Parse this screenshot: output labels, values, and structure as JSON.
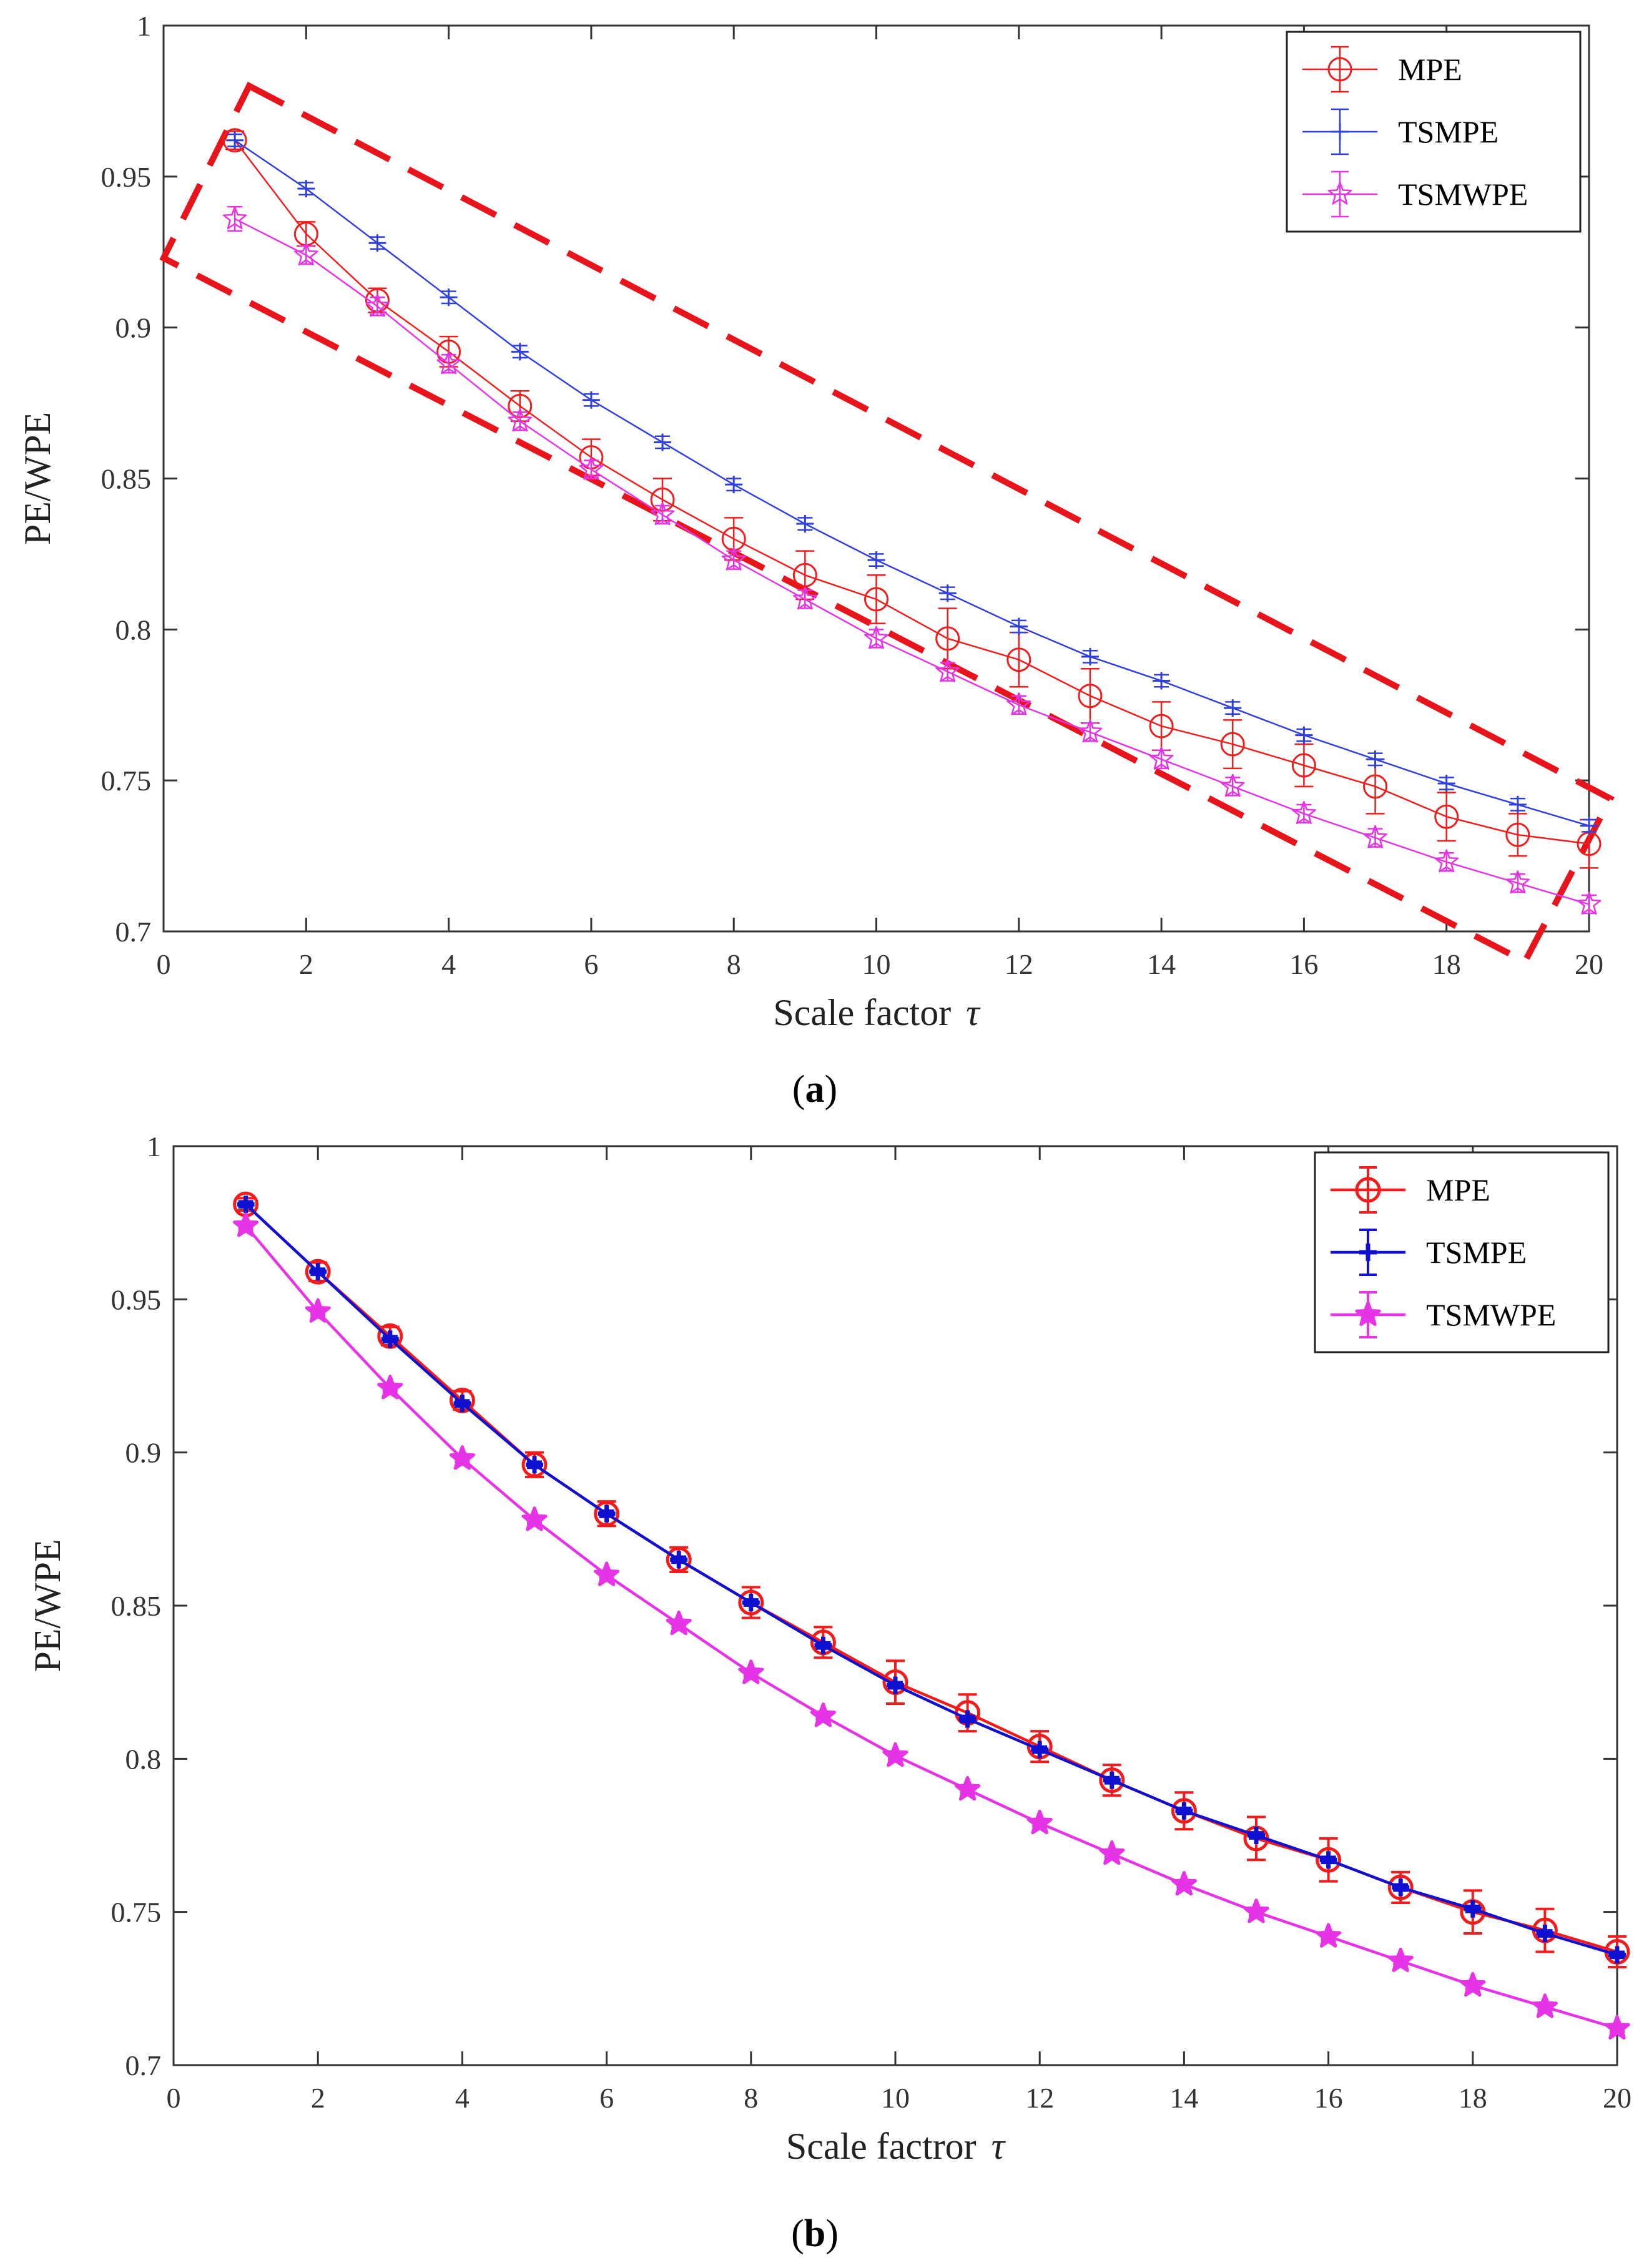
{
  "chart_data": [
    {
      "type": "line",
      "panel": "a",
      "caption_open": "(",
      "caption_letter": "a",
      "caption_close": ")",
      "xlabel": "Scale factor",
      "xlabel_symbol": "τ",
      "ylabel": "PE/WPE",
      "xlim": [
        0,
        20
      ],
      "ylim": [
        0.7,
        1
      ],
      "xticks": [
        "0",
        "2",
        "4",
        "6",
        "8",
        "10",
        "12",
        "14",
        "16",
        "18",
        "20"
      ],
      "yticks": [
        "0.7",
        "0.75",
        "0.8",
        "0.85",
        "0.9",
        "0.95",
        "1"
      ],
      "legend_position": "top-right",
      "highlight_box": {
        "style": "dashed",
        "color": "#e8141b",
        "corners": [
          [
            1.2,
            0.98
          ],
          [
            20.3,
            0.744
          ],
          [
            19.1,
            0.69
          ],
          [
            0,
            0.923
          ]
        ]
      },
      "x": [
        1,
        2,
        3,
        4,
        5,
        6,
        7,
        8,
        9,
        10,
        11,
        12,
        13,
        14,
        15,
        16,
        17,
        18,
        19,
        20
      ],
      "series": [
        {
          "name": "MPE",
          "color": "#f21c1c",
          "marker": "circle",
          "values": [
            0.962,
            0.931,
            0.909,
            0.892,
            0.874,
            0.857,
            0.843,
            0.83,
            0.818,
            0.81,
            0.797,
            0.79,
            0.778,
            0.768,
            0.762,
            0.755,
            0.748,
            0.738,
            0.732,
            0.729
          ],
          "errors": [
            0.003,
            0.004,
            0.004,
            0.005,
            0.005,
            0.006,
            0.007,
            0.007,
            0.008,
            0.008,
            0.01,
            0.009,
            0.009,
            0.008,
            0.008,
            0.007,
            0.009,
            0.008,
            0.007,
            0.008
          ]
        },
        {
          "name": "TSMPE",
          "color": "#2f3fe0",
          "marker": "plus",
          "values": [
            0.962,
            0.946,
            0.928,
            0.91,
            0.892,
            0.876,
            0.862,
            0.848,
            0.835,
            0.823,
            0.812,
            0.801,
            0.791,
            0.783,
            0.774,
            0.765,
            0.757,
            0.749,
            0.742,
            0.735
          ],
          "errors": [
            0.002,
            0.002,
            0.002,
            0.002,
            0.002,
            0.002,
            0.002,
            0.002,
            0.002,
            0.002,
            0.002,
            0.002,
            0.002,
            0.002,
            0.002,
            0.002,
            0.002,
            0.002,
            0.002,
            0.002
          ]
        },
        {
          "name": "TSMWPE",
          "color": "#e633e6",
          "marker": "star",
          "values": [
            0.936,
            0.924,
            0.907,
            0.888,
            0.869,
            0.853,
            0.838,
            0.823,
            0.81,
            0.797,
            0.786,
            0.775,
            0.766,
            0.757,
            0.748,
            0.739,
            0.731,
            0.723,
            0.716,
            0.709
          ],
          "errors": [
            0.004,
            0.003,
            0.003,
            0.003,
            0.003,
            0.003,
            0.003,
            0.003,
            0.003,
            0.003,
            0.003,
            0.003,
            0.003,
            0.003,
            0.003,
            0.003,
            0.003,
            0.003,
            0.003,
            0.003
          ]
        }
      ]
    },
    {
      "type": "line",
      "panel": "b",
      "caption_open": "(",
      "caption_letter": "b",
      "caption_close": ")",
      "xlabel": "Scale factror",
      "xlabel_symbol": "τ",
      "ylabel": "PE/WPE",
      "xlim": [
        0,
        20
      ],
      "ylim": [
        0.7,
        1
      ],
      "xticks": [
        "0",
        "2",
        "4",
        "6",
        "8",
        "10",
        "12",
        "14",
        "16",
        "18",
        "20"
      ],
      "yticks": [
        "0.7",
        "0.75",
        "0.8",
        "0.85",
        "0.9",
        "0.95",
        "1"
      ],
      "legend_position": "top-right",
      "x": [
        1,
        2,
        3,
        4,
        5,
        6,
        7,
        8,
        9,
        10,
        11,
        12,
        13,
        14,
        15,
        16,
        17,
        18,
        19,
        20
      ],
      "series": [
        {
          "name": "MPE",
          "color": "#f21c1c",
          "marker": "circle",
          "values": [
            0.981,
            0.959,
            0.938,
            0.917,
            0.896,
            0.88,
            0.865,
            0.851,
            0.838,
            0.825,
            0.815,
            0.804,
            0.793,
            0.783,
            0.774,
            0.767,
            0.758,
            0.75,
            0.744,
            0.737
          ],
          "errors": [
            0.002,
            0.003,
            0.003,
            0.003,
            0.004,
            0.004,
            0.004,
            0.005,
            0.005,
            0.007,
            0.006,
            0.005,
            0.005,
            0.006,
            0.007,
            0.007,
            0.005,
            0.007,
            0.007,
            0.005
          ]
        },
        {
          "name": "TSMPE",
          "color": "#1010d0",
          "marker": "plus",
          "values": [
            0.981,
            0.959,
            0.937,
            0.916,
            0.896,
            0.88,
            0.865,
            0.851,
            0.837,
            0.824,
            0.813,
            0.803,
            0.793,
            0.783,
            0.775,
            0.767,
            0.758,
            0.751,
            0.743,
            0.736
          ],
          "errors": [
            0.001,
            0.001,
            0.001,
            0.001,
            0.001,
            0.001,
            0.001,
            0.001,
            0.001,
            0.001,
            0.001,
            0.001,
            0.001,
            0.001,
            0.001,
            0.001,
            0.001,
            0.001,
            0.001,
            0.001
          ]
        },
        {
          "name": "TSMWPE",
          "color": "#e633e6",
          "marker": "star",
          "values": [
            0.974,
            0.946,
            0.921,
            0.898,
            0.878,
            0.86,
            0.844,
            0.828,
            0.814,
            0.801,
            0.79,
            0.779,
            0.769,
            0.759,
            0.75,
            0.742,
            0.734,
            0.726,
            0.719,
            0.712
          ],
          "errors": [
            0.001,
            0.001,
            0.001,
            0.001,
            0.001,
            0.001,
            0.001,
            0.001,
            0.001,
            0.001,
            0.001,
            0.001,
            0.001,
            0.001,
            0.001,
            0.001,
            0.001,
            0.001,
            0.001,
            0.001
          ]
        }
      ]
    }
  ]
}
